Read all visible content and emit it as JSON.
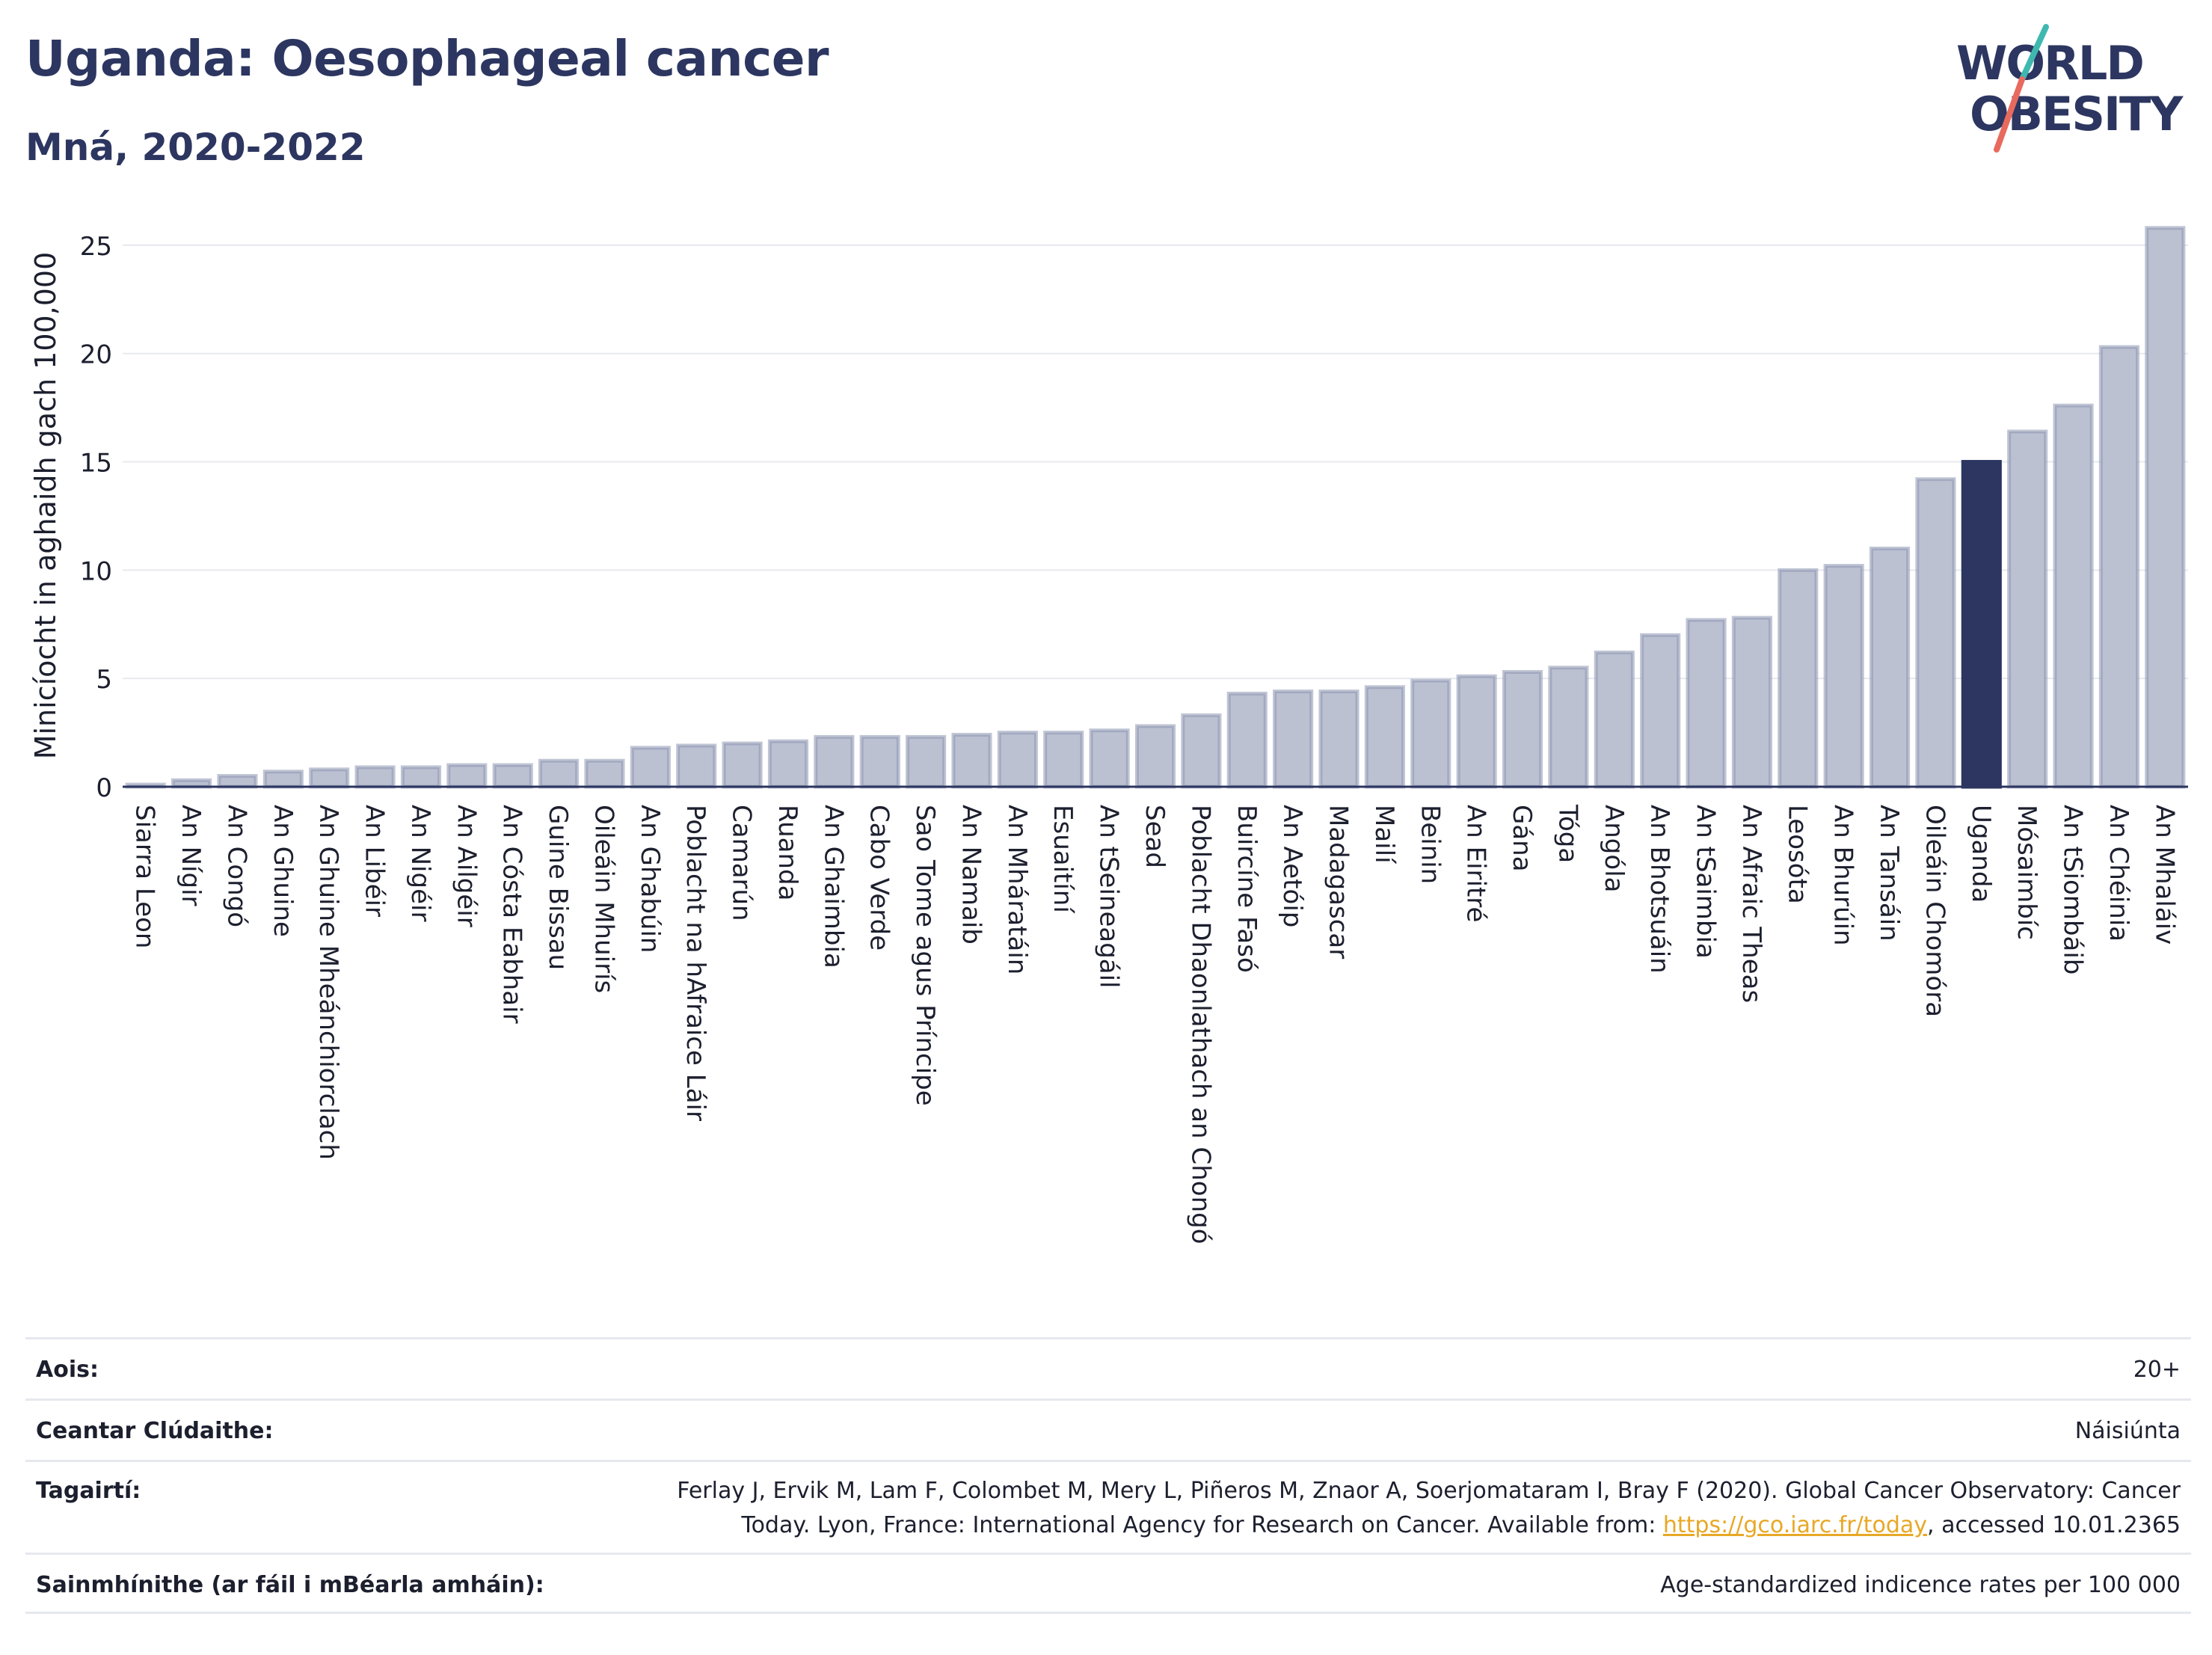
{
  "title": "Uganda: Oesophageal cancer",
  "subtitle": "Mná, 2020-2022",
  "logo": {
    "line1": "WORLD",
    "line2": "OBESITY"
  },
  "colors": {
    "bar": "#bcc1d2",
    "bar_stroke": "#8c95b0",
    "highlight": "#2c3660",
    "title": "#2c3660",
    "link": "#e8a826"
  },
  "chart_data": {
    "type": "bar",
    "ylabel": "Minicíocht in aghaidh gach 100,000",
    "xlabel": "",
    "ylim": [
      0,
      27
    ],
    "yticks": [
      0,
      5,
      10,
      15,
      20,
      25
    ],
    "grid": true,
    "highlight": "Uganda",
    "categories": [
      "Siarra Leon",
      "An Nígir",
      "An Congó",
      "An Ghuine",
      "An Ghuine Mheánchiorclach",
      "An Libéir",
      "An Nigéir",
      "An Ailgéir",
      "An Cósta Eabhair",
      "Guine Bissau",
      "Oileáin Mhuirís",
      "An Ghabúin",
      "Poblacht na hAfraice Láir",
      "Camarún",
      "Ruanda",
      "An Ghaimbia",
      "Cabo Verde",
      "Sao Tome agus Príncipe",
      "An Namaib",
      "An Mháratáin",
      "Esuaitíní",
      "An tSeineagáil",
      "Sead",
      "Poblacht Dhaonlathach an Chongó",
      "Buircíne Fasó",
      "An Aetóip",
      "Madagascar",
      "Mailí",
      "Beinin",
      "An Eiritré",
      "Gána",
      "Tóga",
      "Angóla",
      "An Bhotsuáin",
      "An tSaimbia",
      "An Afraic Theas",
      "Leosóta",
      "An Bhurúin",
      "An Tansáin",
      "Oileáin Chomóra",
      "Uganda",
      "Mósaimbíc",
      "An tSiombáib",
      "An Chéinia",
      "An Mhaláiv"
    ],
    "values": [
      0.1,
      0.3,
      0.5,
      0.7,
      0.8,
      0.9,
      0.9,
      1.0,
      1.0,
      1.2,
      1.2,
      1.8,
      1.9,
      2.0,
      2.1,
      2.3,
      2.3,
      2.3,
      2.4,
      2.5,
      2.5,
      2.6,
      2.8,
      3.3,
      4.3,
      4.4,
      4.4,
      4.6,
      4.9,
      5.1,
      5.3,
      5.5,
      6.2,
      7.0,
      7.7,
      7.8,
      10.0,
      10.2,
      11.0,
      14.2,
      15.0,
      16.4,
      17.6,
      20.3,
      25.8
    ]
  },
  "meta": [
    {
      "key": "Aois:",
      "value": "20+"
    },
    {
      "key": "Ceantar Clúdaithe:",
      "value": "Náisiúnta"
    },
    {
      "key": "Tagairtí:",
      "value_line1": "Ferlay J, Ervik M, Lam F, Colombet M, Mery L, Piñeros M, Znaor A, Soerjomataram I, Bray F (2020). Global Cancer Observatory: Cancer",
      "value_pre": "Today. Lyon, France: International Agency for Research on Cancer. Available from: ",
      "link": "https://gco.iarc.fr/today",
      "value_post": ", accessed 10.01.2365"
    },
    {
      "key": "Sainmhínithe (ar fáil i mBéarla amháin):",
      "value": "Age-standardized indicence rates per 100 000"
    }
  ]
}
